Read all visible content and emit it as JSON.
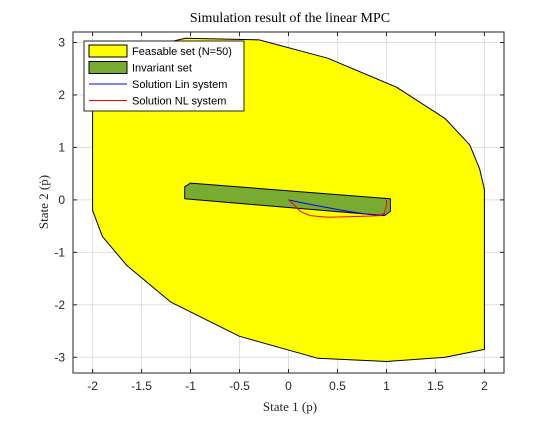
{
  "chart_data": {
    "type": "area",
    "title": "Simulation result of the linear MPC",
    "xlabel": "State 1 (p)",
    "ylabel": "State 2 (ṗ)",
    "xlim": [
      -2.2,
      2.2
    ],
    "ylim": [
      -3.3,
      3.2
    ],
    "xticks": [
      -2,
      -1.5,
      -1,
      -0.5,
      0,
      0.5,
      1,
      1.5,
      2
    ],
    "xtick_labels": [
      "-2",
      "-1.5",
      "-1",
      "-0.5",
      "0",
      "0.5",
      "1",
      "1.5",
      "2"
    ],
    "yticks": [
      -3,
      -2,
      -1,
      0,
      1,
      2,
      3
    ],
    "ytick_labels": [
      "-3",
      "-2",
      "-1",
      "0",
      "1",
      "2",
      "3"
    ],
    "grid": true,
    "legend_position": "top-left",
    "series": [
      {
        "name": "Feasable set (N=50)",
        "kind": "polygon",
        "color": "#ffff00",
        "edge_color": "#000000",
        "points": [
          [
            -2.0,
            0.0
          ],
          [
            -2.0,
            2.05
          ],
          [
            -1.6,
            2.85
          ],
          [
            -1.05,
            3.08
          ],
          [
            -0.3,
            3.05
          ],
          [
            0.4,
            2.7
          ],
          [
            1.1,
            2.15
          ],
          [
            1.6,
            1.55
          ],
          [
            1.85,
            1.05
          ],
          [
            1.95,
            0.6
          ],
          [
            2.0,
            0.2
          ],
          [
            2.0,
            -2.85
          ],
          [
            1.6,
            -3.0
          ],
          [
            1.0,
            -3.08
          ],
          [
            0.3,
            -3.02
          ],
          [
            -0.5,
            -2.6
          ],
          [
            -1.2,
            -1.95
          ],
          [
            -1.65,
            -1.25
          ],
          [
            -1.9,
            -0.7
          ],
          [
            -2.0,
            -0.2
          ]
        ]
      },
      {
        "name": "Invariant set",
        "kind": "polygon",
        "color": "#77ac30",
        "edge_color": "#000000",
        "points": [
          [
            -1.06,
            0.02
          ],
          [
            -1.06,
            0.25
          ],
          [
            -1.0,
            0.32
          ],
          [
            1.04,
            0.02
          ],
          [
            1.04,
            -0.22
          ],
          [
            0.98,
            -0.3
          ]
        ]
      },
      {
        "name": "Solution Lin system",
        "kind": "line",
        "color": "#0000ff",
        "points": [
          [
            0.0,
            0.0
          ],
          [
            0.15,
            -0.06
          ],
          [
            0.35,
            -0.13
          ],
          [
            0.55,
            -0.2
          ],
          [
            0.75,
            -0.26
          ],
          [
            0.9,
            -0.29
          ],
          [
            0.97,
            -0.29
          ],
          [
            1.0,
            -0.28
          ]
        ]
      },
      {
        "name": "Solution NL system",
        "kind": "line",
        "color": "#ff0000",
        "points": [
          [
            0.0,
            0.0
          ],
          [
            0.06,
            -0.1
          ],
          [
            0.12,
            -0.22
          ],
          [
            0.22,
            -0.3
          ],
          [
            0.4,
            -0.33
          ],
          [
            0.6,
            -0.32
          ],
          [
            0.8,
            -0.31
          ],
          [
            0.93,
            -0.3
          ],
          [
            0.98,
            -0.25
          ],
          [
            1.0,
            -0.1
          ],
          [
            1.0,
            0.0
          ]
        ]
      }
    ]
  }
}
